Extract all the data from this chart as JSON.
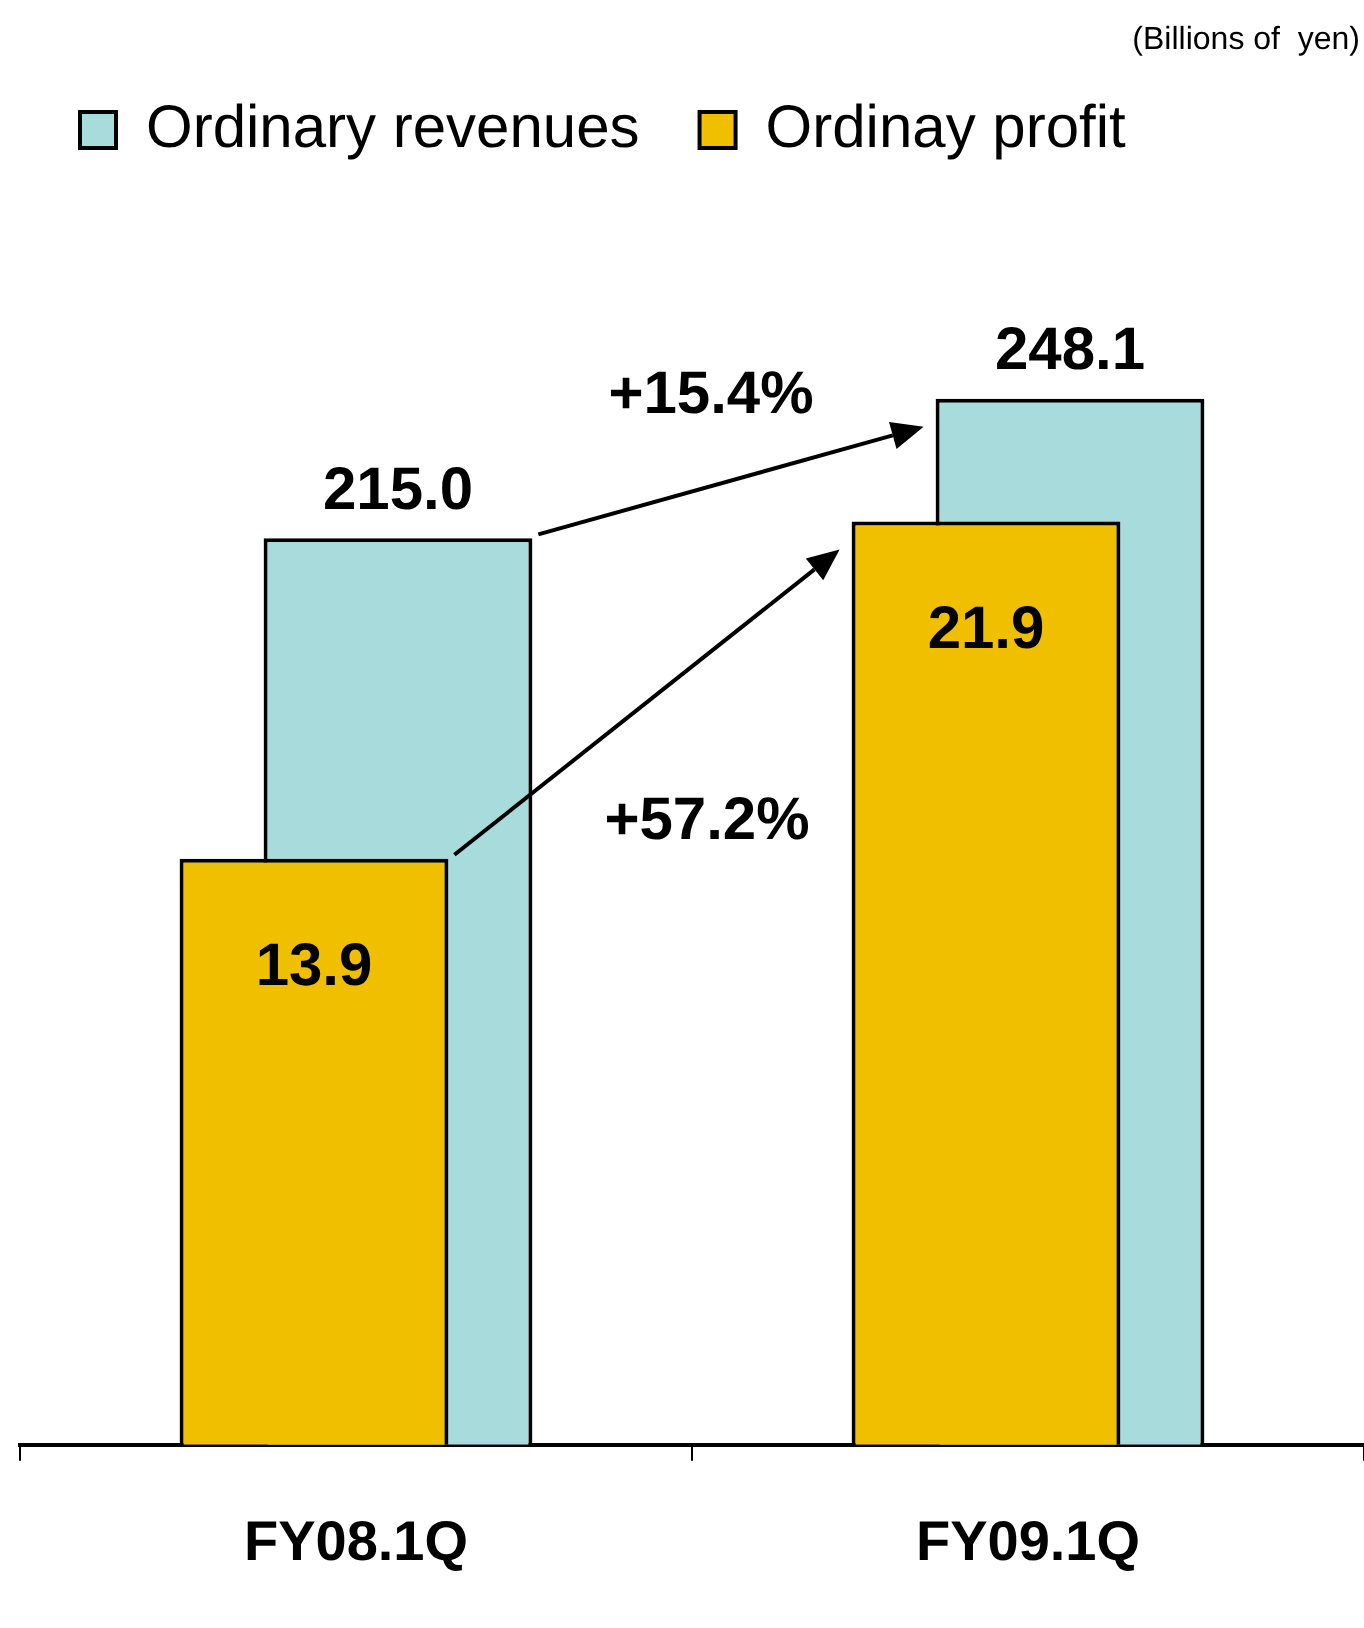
{
  "chart_data": {
    "type": "bar",
    "categories": [
      "FY08.1Q",
      "FY09.1Q"
    ],
    "series": [
      {
        "name": "Ordinary revenues",
        "color": "#a8dcdc",
        "values": [
          215.0,
          248.1
        ],
        "value_labels": [
          "215.0",
          "248.1"
        ]
      },
      {
        "name": "Ordinay profit",
        "color": "#f0c000",
        "values": [
          13.9,
          21.9
        ],
        "value_labels": [
          "13.9",
          "21.9"
        ],
        "axis": "y2"
      }
    ],
    "tick_labels": "x",
    "legend": "top left",
    "annotations": [
      "(Billions of  yen)",
      "+15.4%",
      "+57.2%"
    ]
  }
}
